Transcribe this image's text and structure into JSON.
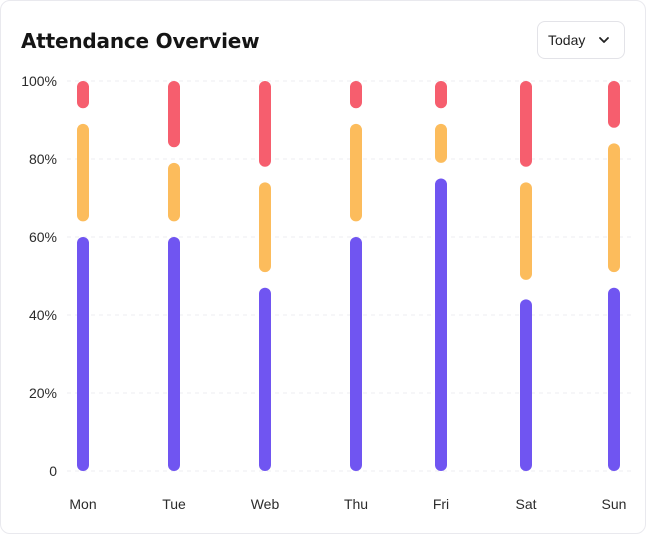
{
  "header": {
    "title": "Attendance Overview",
    "dropdown_value": "Today"
  },
  "icons": {
    "dropdown": "chevron-down-icon"
  },
  "colors": {
    "present": "#7055f1",
    "late": "#fcbc5c",
    "absent": "#f65e6e",
    "grid": "#ececf0"
  },
  "chart_data": {
    "type": "bar",
    "title": "Attendance Overview",
    "categories": [
      "Mon",
      "Tue",
      "Web",
      "Thu",
      "Fri",
      "Sat",
      "Sun"
    ],
    "yticks": [
      "0",
      "20%",
      "40%",
      "60%",
      "80%",
      "100%"
    ],
    "ylim": [
      0,
      100
    ],
    "grid": true,
    "series": [
      {
        "color": "#7055f1",
        "ranges": [
          [
            0,
            60
          ],
          [
            0,
            60
          ],
          [
            0,
            47
          ],
          [
            0,
            60
          ],
          [
            0,
            75
          ],
          [
            0,
            44
          ],
          [
            0,
            47
          ]
        ]
      },
      {
        "color": "#fcbc5c",
        "ranges": [
          [
            64,
            89
          ],
          [
            64,
            79
          ],
          [
            51,
            74
          ],
          [
            64,
            89
          ],
          [
            79,
            89
          ],
          [
            49,
            74
          ],
          [
            51,
            84
          ]
        ]
      },
      {
        "color": "#f65e6e",
        "ranges": [
          [
            93,
            100
          ],
          [
            83,
            100
          ],
          [
            78,
            100
          ],
          [
            93,
            100
          ],
          [
            93,
            100
          ],
          [
            78,
            100
          ],
          [
            88,
            100
          ]
        ]
      }
    ]
  }
}
